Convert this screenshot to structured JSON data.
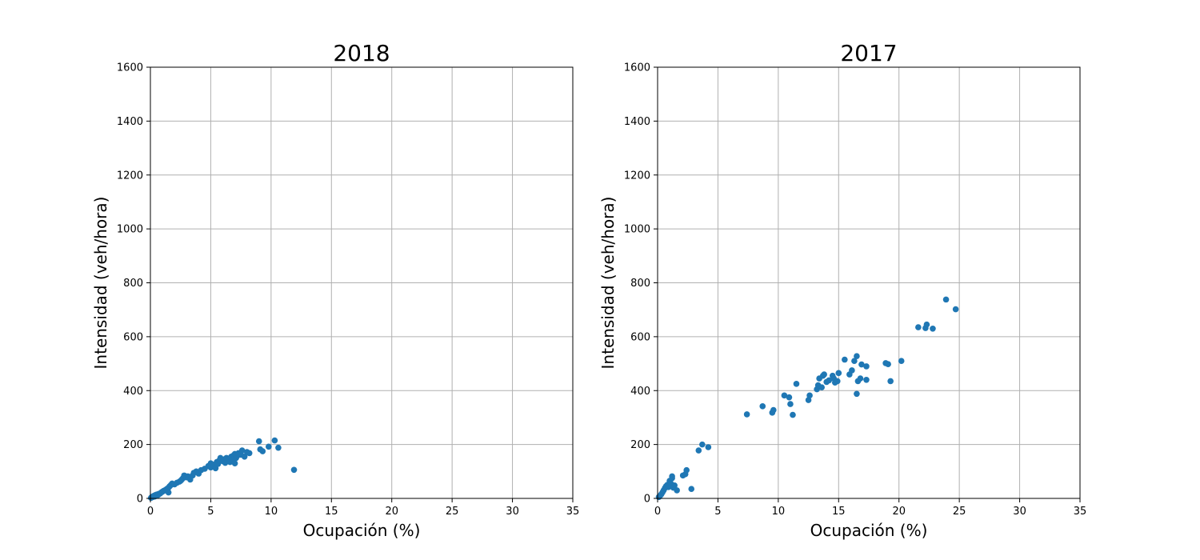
{
  "chart_data": [
    {
      "type": "scatter",
      "title": "2018",
      "xlabel": "Ocupación (%)",
      "ylabel": "Intensidad (veh/hora)",
      "xlim": [
        0,
        35
      ],
      "ylim": [
        0,
        1600
      ],
      "xticks": [
        0,
        5,
        10,
        15,
        20,
        25,
        30,
        35
      ],
      "yticks": [
        0,
        200,
        400,
        600,
        800,
        1000,
        1200,
        1400,
        1600
      ],
      "grid": true,
      "color": "#1f77b4",
      "points": [
        [
          0.05,
          2
        ],
        [
          0.1,
          4
        ],
        [
          0.15,
          6
        ],
        [
          0.2,
          5
        ],
        [
          0.25,
          8
        ],
        [
          0.3,
          10
        ],
        [
          0.35,
          7
        ],
        [
          0.4,
          12
        ],
        [
          0.45,
          9
        ],
        [
          0.5,
          14
        ],
        [
          0.55,
          11
        ],
        [
          0.6,
          15
        ],
        [
          0.65,
          13
        ],
        [
          0.7,
          17
        ],
        [
          0.8,
          18
        ],
        [
          0.9,
          22
        ],
        [
          1.0,
          25
        ],
        [
          1.1,
          28
        ],
        [
          1.2,
          30
        ],
        [
          1.3,
          33
        ],
        [
          1.4,
          36
        ],
        [
          1.5,
          22
        ],
        [
          1.5,
          40
        ],
        [
          1.6,
          45
        ],
        [
          1.7,
          50
        ],
        [
          1.8,
          55
        ],
        [
          2.0,
          52
        ],
        [
          2.2,
          58
        ],
        [
          2.4,
          62
        ],
        [
          2.5,
          65
        ],
        [
          2.6,
          70
        ],
        [
          2.7,
          75
        ],
        [
          2.8,
          85
        ],
        [
          2.9,
          80
        ],
        [
          3.0,
          78
        ],
        [
          3.1,
          82
        ],
        [
          3.3,
          70
        ],
        [
          3.5,
          85
        ],
        [
          3.6,
          95
        ],
        [
          3.8,
          100
        ],
        [
          4.0,
          92
        ],
        [
          4.2,
          105
        ],
        [
          4.5,
          110
        ],
        [
          4.8,
          120
        ],
        [
          5.0,
          115
        ],
        [
          5.0,
          130
        ],
        [
          5.2,
          125
        ],
        [
          5.4,
          112
        ],
        [
          5.5,
          135
        ],
        [
          5.6,
          128
        ],
        [
          5.7,
          140
        ],
        [
          5.8,
          150
        ],
        [
          6.0,
          138
        ],
        [
          6.1,
          145
        ],
        [
          6.2,
          132
        ],
        [
          6.3,
          150
        ],
        [
          6.5,
          148
        ],
        [
          6.6,
          135
        ],
        [
          6.7,
          155
        ],
        [
          6.8,
          142
        ],
        [
          6.9,
          160
        ],
        [
          7.0,
          130
        ],
        [
          7.0,
          165
        ],
        [
          7.1,
          150
        ],
        [
          7.2,
          158
        ],
        [
          7.3,
          168
        ],
        [
          7.5,
          162
        ],
        [
          7.6,
          178
        ],
        [
          7.8,
          155
        ],
        [
          8.0,
          172
        ],
        [
          8.2,
          168
        ],
        [
          9.0,
          212
        ],
        [
          9.1,
          182
        ],
        [
          9.3,
          175
        ],
        [
          9.8,
          192
        ],
        [
          10.3,
          215
        ],
        [
          10.6,
          188
        ],
        [
          11.9,
          106
        ]
      ]
    },
    {
      "type": "scatter",
      "title": "2017",
      "xlabel": "Ocupación (%)",
      "ylabel": "Intensidad (veh/hora)",
      "xlim": [
        0,
        35
      ],
      "ylim": [
        0,
        1600
      ],
      "xticks": [
        0,
        5,
        10,
        15,
        20,
        25,
        30,
        35
      ],
      "yticks": [
        0,
        200,
        400,
        600,
        800,
        1000,
        1200,
        1400,
        1600
      ],
      "grid": true,
      "color": "#1f77b4",
      "points": [
        [
          0.1,
          5
        ],
        [
          0.2,
          10
        ],
        [
          0.3,
          15
        ],
        [
          0.4,
          22
        ],
        [
          0.5,
          30
        ],
        [
          0.6,
          38
        ],
        [
          0.7,
          45
        ],
        [
          0.8,
          50
        ],
        [
          0.9,
          42
        ],
        [
          1.0,
          65
        ],
        [
          1.1,
          55
        ],
        [
          1.2,
          75
        ],
        [
          1.2,
          82
        ],
        [
          1.3,
          40
        ],
        [
          1.4,
          48
        ],
        [
          1.6,
          30
        ],
        [
          2.1,
          85
        ],
        [
          2.3,
          90
        ],
        [
          2.4,
          105
        ],
        [
          2.8,
          35
        ],
        [
          3.4,
          178
        ],
        [
          3.7,
          200
        ],
        [
          4.2,
          190
        ],
        [
          7.4,
          312
        ],
        [
          8.7,
          342
        ],
        [
          9.5,
          318
        ],
        [
          9.6,
          328
        ],
        [
          10.5,
          382
        ],
        [
          10.9,
          375
        ],
        [
          11.0,
          350
        ],
        [
          11.2,
          310
        ],
        [
          11.5,
          425
        ],
        [
          12.5,
          365
        ],
        [
          12.6,
          382
        ],
        [
          13.2,
          405
        ],
        [
          13.3,
          420
        ],
        [
          13.4,
          445
        ],
        [
          13.6,
          412
        ],
        [
          13.7,
          455
        ],
        [
          13.8,
          460
        ],
        [
          14.0,
          432
        ],
        [
          14.2,
          438
        ],
        [
          14.5,
          455
        ],
        [
          14.6,
          445
        ],
        [
          14.7,
          430
        ],
        [
          14.9,
          435
        ],
        [
          15.0,
          465
        ],
        [
          15.5,
          515
        ],
        [
          15.9,
          460
        ],
        [
          16.1,
          475
        ],
        [
          16.3,
          510
        ],
        [
          16.5,
          528
        ],
        [
          16.5,
          388
        ],
        [
          16.6,
          435
        ],
        [
          16.8,
          445
        ],
        [
          16.9,
          497
        ],
        [
          17.3,
          490
        ],
        [
          17.3,
          440
        ],
        [
          18.9,
          502
        ],
        [
          19.1,
          498
        ],
        [
          19.3,
          435
        ],
        [
          20.2,
          510
        ],
        [
          21.6,
          635
        ],
        [
          22.2,
          632
        ],
        [
          22.3,
          645
        ],
        [
          22.8,
          630
        ],
        [
          23.9,
          738
        ],
        [
          24.7,
          702
        ]
      ]
    }
  ]
}
